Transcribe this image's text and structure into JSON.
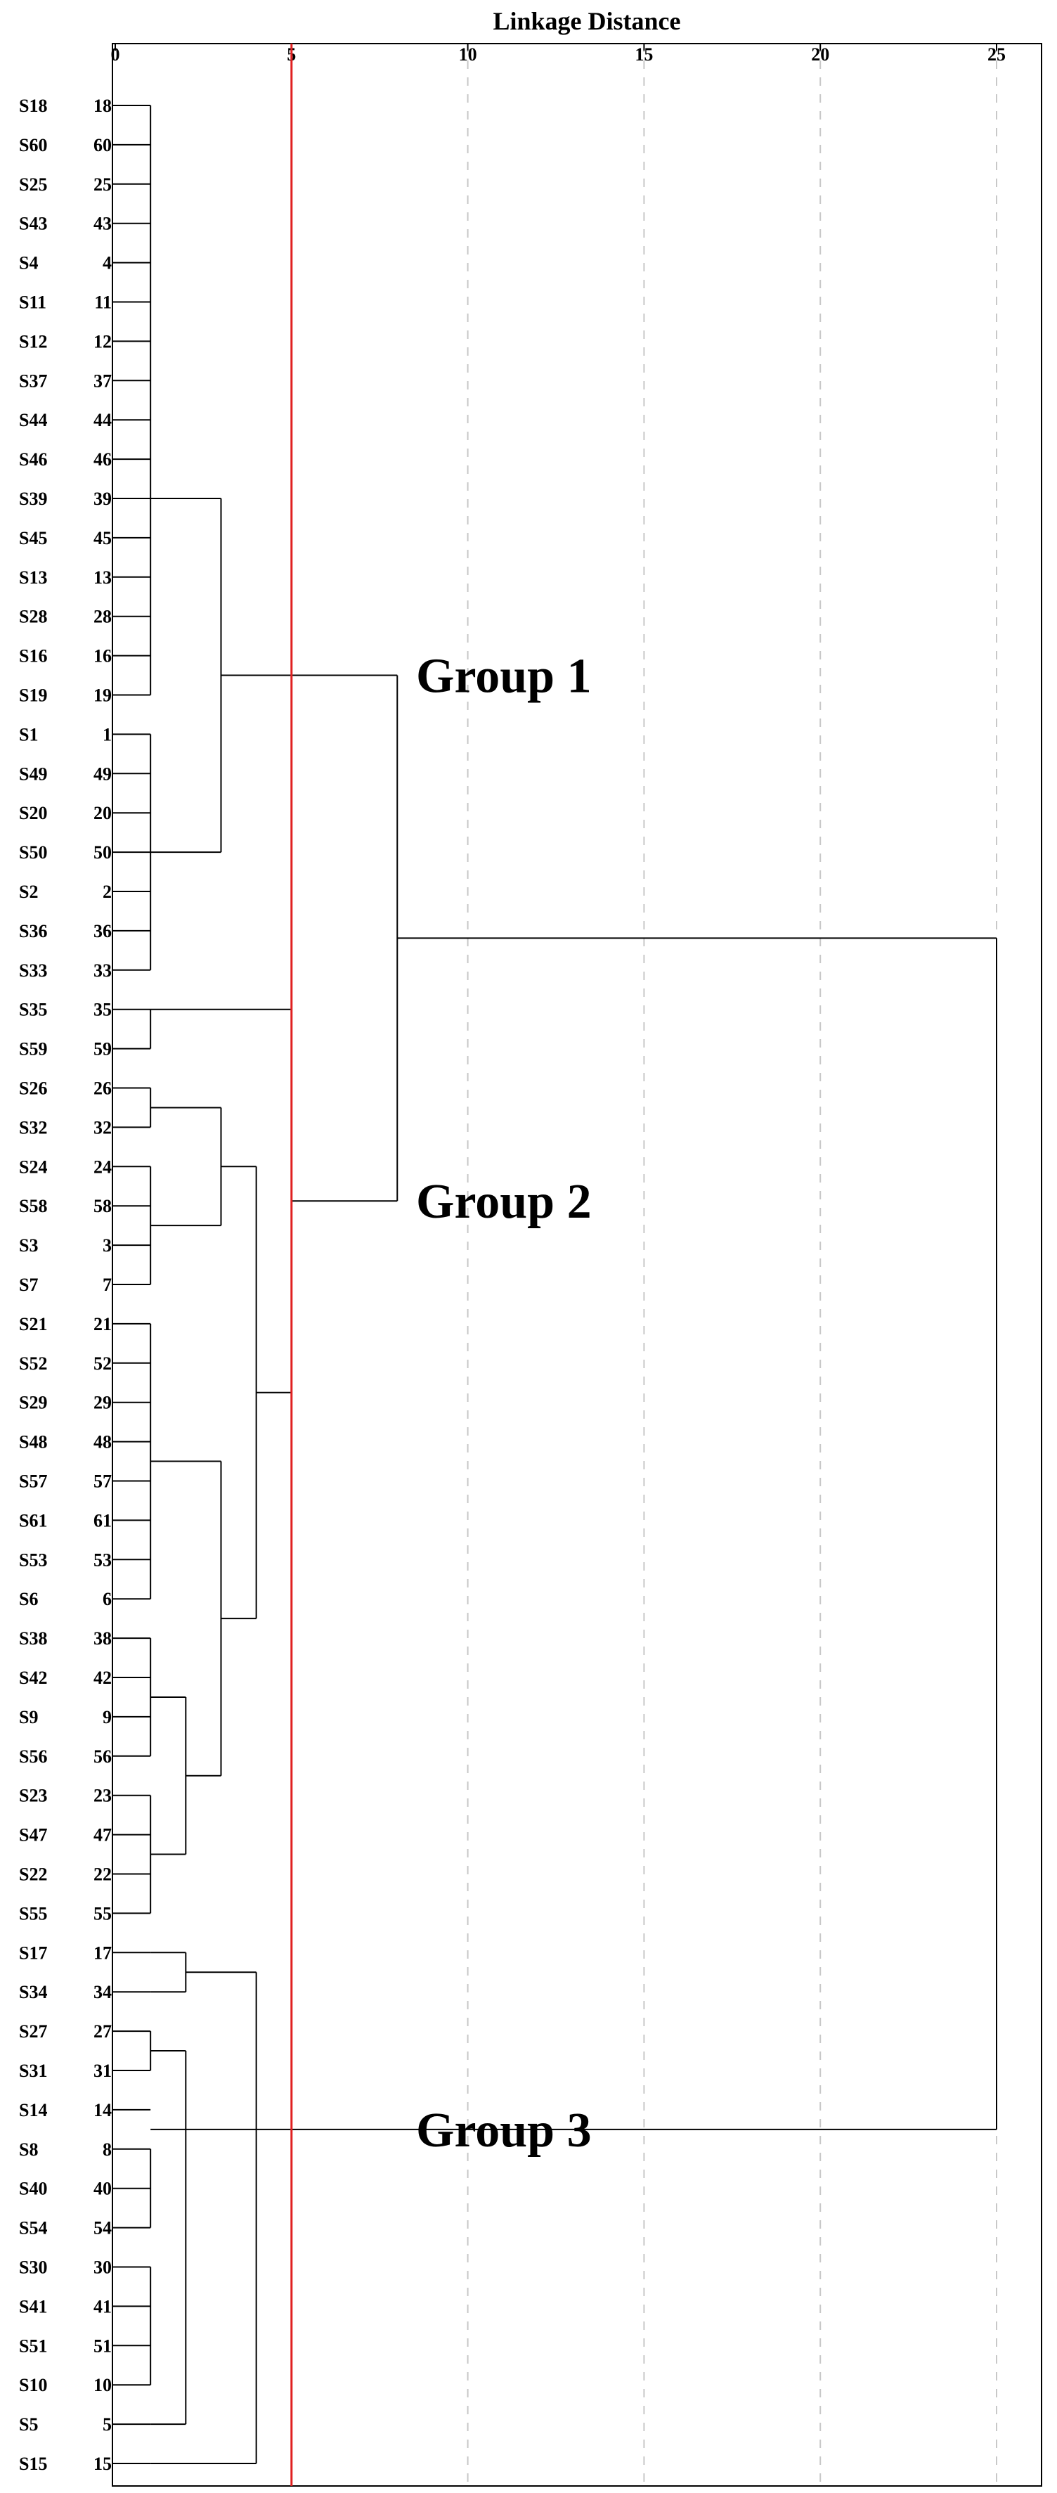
{
  "chart_data": {
    "type": "dendrogram",
    "title": "Linkage Distance",
    "x_ticks": [
      "0",
      "5",
      "10",
      "15",
      "20",
      "25"
    ],
    "xlim": [
      0,
      25
    ],
    "cut_line": 5,
    "cut_line_color": "#e02020",
    "grid": "dashed vertical at ticks",
    "leaves": [
      {
        "label": "S18",
        "num": "18"
      },
      {
        "label": "S60",
        "num": "60"
      },
      {
        "label": "S25",
        "num": "25"
      },
      {
        "label": "S43",
        "num": "43"
      },
      {
        "label": "S4",
        "num": "4"
      },
      {
        "label": "S11",
        "num": "11"
      },
      {
        "label": "S12",
        "num": "12"
      },
      {
        "label": "S37",
        "num": "37"
      },
      {
        "label": "S44",
        "num": "44"
      },
      {
        "label": "S46",
        "num": "46"
      },
      {
        "label": "S39",
        "num": "39"
      },
      {
        "label": "S45",
        "num": "45"
      },
      {
        "label": "S13",
        "num": "13"
      },
      {
        "label": "S28",
        "num": "28"
      },
      {
        "label": "S16",
        "num": "16"
      },
      {
        "label": "S19",
        "num": "19"
      },
      {
        "label": "S1",
        "num": "1"
      },
      {
        "label": "S49",
        "num": "49"
      },
      {
        "label": "S20",
        "num": "20"
      },
      {
        "label": "S50",
        "num": "50"
      },
      {
        "label": "S2",
        "num": "2"
      },
      {
        "label": "S36",
        "num": "36"
      },
      {
        "label": "S33",
        "num": "33"
      },
      {
        "label": "S35",
        "num": "35"
      },
      {
        "label": "S59",
        "num": "59"
      },
      {
        "label": "S26",
        "num": "26"
      },
      {
        "label": "S32",
        "num": "32"
      },
      {
        "label": "S24",
        "num": "24"
      },
      {
        "label": "S58",
        "num": "58"
      },
      {
        "label": "S3",
        "num": "3"
      },
      {
        "label": "S7",
        "num": "7"
      },
      {
        "label": "S21",
        "num": "21"
      },
      {
        "label": "S52",
        "num": "52"
      },
      {
        "label": "S29",
        "num": "29"
      },
      {
        "label": "S48",
        "num": "48"
      },
      {
        "label": "S57",
        "num": "57"
      },
      {
        "label": "S61",
        "num": "61"
      },
      {
        "label": "S53",
        "num": "53"
      },
      {
        "label": "S6",
        "num": "6"
      },
      {
        "label": "S38",
        "num": "38"
      },
      {
        "label": "S42",
        "num": "42"
      },
      {
        "label": "S9",
        "num": "9"
      },
      {
        "label": "S56",
        "num": "56"
      },
      {
        "label": "S23",
        "num": "23"
      },
      {
        "label": "S47",
        "num": "47"
      },
      {
        "label": "S22",
        "num": "22"
      },
      {
        "label": "S55",
        "num": "55"
      },
      {
        "label": "S17",
        "num": "17"
      },
      {
        "label": "S34",
        "num": "34"
      },
      {
        "label": "S27",
        "num": "27"
      },
      {
        "label": "S31",
        "num": "31"
      },
      {
        "label": "S14",
        "num": "14"
      },
      {
        "label": "S8",
        "num": "8"
      },
      {
        "label": "S40",
        "num": "40"
      },
      {
        "label": "S54",
        "num": "54"
      },
      {
        "label": "S30",
        "num": "30"
      },
      {
        "label": "S41",
        "num": "41"
      },
      {
        "label": "S51",
        "num": "51"
      },
      {
        "label": "S10",
        "num": "10"
      },
      {
        "label": "S5",
        "num": "5"
      },
      {
        "label": "S15",
        "num": "15"
      }
    ],
    "links": [
      {
        "from": 0,
        "to": 15,
        "d": 1
      },
      {
        "from": 16,
        "to": 22,
        "d": 1
      },
      {
        "from": 10,
        "to": 19,
        "d": 3
      },
      {
        "from": 23,
        "to": 24,
        "d": 1
      },
      {
        "from": 25,
        "to": 26,
        "d": 1
      },
      {
        "from": 27,
        "to": 30,
        "d": 1
      },
      {
        "from": 25.5,
        "to": 28.5,
        "d": 3
      },
      {
        "from": 31,
        "to": 38,
        "d": 1
      },
      {
        "from": 39,
        "to": 42,
        "d": 1
      },
      {
        "from": 43,
        "to": 46,
        "d": 1
      },
      {
        "from": 40.5,
        "to": 44.5,
        "d": 2
      },
      {
        "from": 34.5,
        "to": 42.5,
        "d": 3
      },
      {
        "from": 27,
        "to": 38.5,
        "d": 4
      },
      {
        "from": 23,
        "to": 32.75,
        "d": 5
      },
      {
        "from": 14.5,
        "to": 27.875,
        "d": 8
      },
      {
        "from": 47,
        "to": 48,
        "d": 2
      },
      {
        "from": 49,
        "to": 50,
        "d": 1
      },
      {
        "from": 52,
        "to": 54,
        "d": 1
      },
      {
        "from": 55,
        "to": 58,
        "d": 1
      },
      {
        "from": 49.5,
        "to": 59,
        "d": 2
      },
      {
        "from": 47.5,
        "to": 60,
        "d": 4
      },
      {
        "from": 21.1875,
        "to": 51.5,
        "d": 25
      }
    ],
    "groups": [
      {
        "name": "Group 1",
        "row": 14.5
      },
      {
        "name": "Group 2",
        "row": 27.875
      },
      {
        "name": "Group 3",
        "row": 51.5
      }
    ]
  }
}
